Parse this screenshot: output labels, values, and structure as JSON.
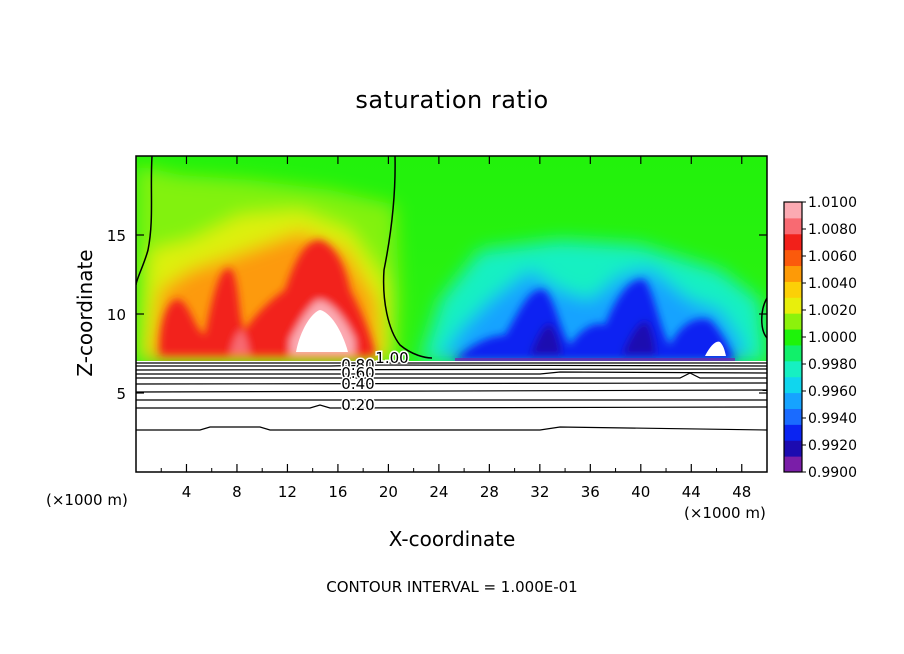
{
  "chart_data": {
    "type": "heatmap",
    "title": "saturation ratio",
    "xlabel": "X-coordinate",
    "ylabel": "Z-coordinate",
    "x_unit": "(×1000 m)",
    "y_unit": "(×1000 m)",
    "xlim": [
      0,
      50
    ],
    "ylim": [
      0,
      20
    ],
    "x_ticks": [
      4,
      8,
      12,
      16,
      20,
      24,
      28,
      32,
      36,
      40,
      44,
      48
    ],
    "y_ticks": [
      5,
      10,
      15
    ],
    "colorbar": {
      "min": 0.99,
      "max": 1.01,
      "labels": [
        "1.0100",
        "1.0080",
        "1.0060",
        "1.0040",
        "1.0020",
        "1.0000",
        "0.9980",
        "0.9960",
        "0.9940",
        "0.9920",
        "0.9900"
      ],
      "colors": [
        "#7a1ea8",
        "#1c0bb0",
        "#0a24f2",
        "#1a6bff",
        "#16a3ff",
        "#10d6ee",
        "#16f0c2",
        "#11f06a",
        "#1ef30a",
        "#8cf20c",
        "#e8ef0c",
        "#fcd007",
        "#fd9a07",
        "#fb5a0c",
        "#f2201a",
        "#f86a72",
        "#fbaab2"
      ]
    },
    "contour_labels": [
      "1.00",
      "0.80",
      "0.60",
      "0.40",
      "0.20"
    ],
    "contour_interval_text": "CONTOUR INTERVAL = 1.000E-01"
  }
}
